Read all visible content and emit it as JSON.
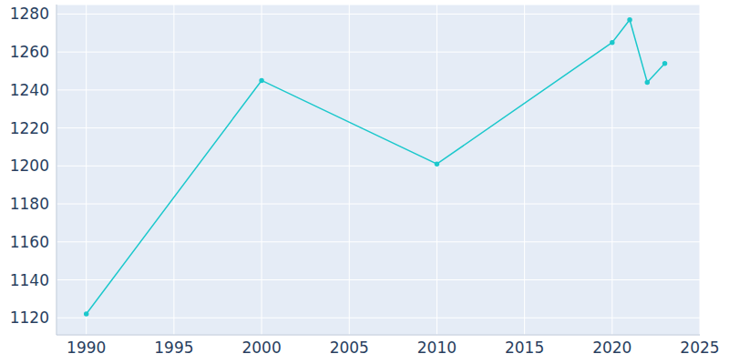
{
  "chart_data": {
    "type": "line",
    "x": [
      1990,
      2000,
      2010,
      2020,
      2021,
      2022,
      2023
    ],
    "values": [
      1122,
      1245,
      1201,
      1265,
      1277,
      1244,
      1254
    ],
    "color": "#1cc8cc",
    "xlim": [
      1988.3,
      2025
    ],
    "ylim": [
      1111,
      1285
    ],
    "xticks": [
      1990,
      1995,
      2000,
      2005,
      2010,
      2015,
      2020,
      2025
    ],
    "yticks": [
      1120,
      1140,
      1160,
      1180,
      1200,
      1220,
      1240,
      1260,
      1280
    ],
    "grid": true,
    "marker": "circle"
  }
}
